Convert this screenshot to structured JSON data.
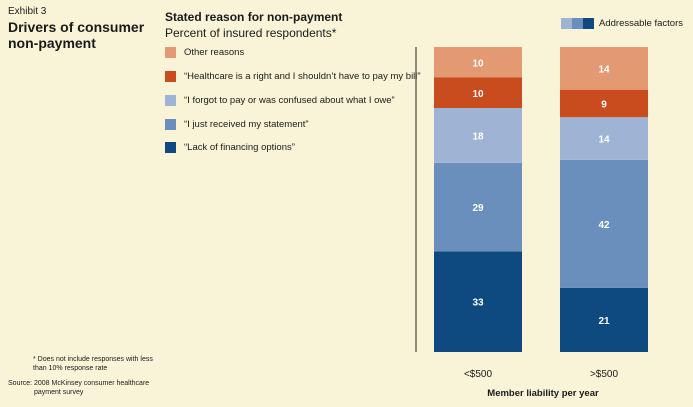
{
  "exhibit": {
    "label": "Exhibit 3",
    "title": "Drivers of consumer non-payment"
  },
  "footnote": "* Does not include responses with less than 10% response rate",
  "source": {
    "label": "Source:",
    "text": "2008 McKinsey consumer healthcare payment survey"
  },
  "addressable_label": "Addressable factors",
  "colors": {
    "other": "#e39a72",
    "right": "#c94c1e",
    "forgot": "#9fb3d4",
    "statement": "#6a8fbc",
    "financing": "#0e4a80",
    "background": "#f9f4d8"
  },
  "chart_data": {
    "type": "bar",
    "stacked": true,
    "title": "Stated reason for non-payment",
    "subtitle": "Percent of insured respondents*",
    "xlabel": "Member liability per year",
    "ylabel": "",
    "categories": [
      "<$500",
      ">$500"
    ],
    "series": [
      {
        "name": "“Lack of financing options”",
        "key": "financing",
        "values": [
          33,
          21
        ]
      },
      {
        "name": "“I just received my statement”",
        "key": "statement",
        "values": [
          29,
          42
        ]
      },
      {
        "name": "“I forgot to pay or was confused about what I owe”",
        "key": "forgot",
        "values": [
          18,
          14
        ]
      },
      {
        "name": "“Healthcare is a right and I shouldn’t have to pay my bill”",
        "key": "right",
        "values": [
          10,
          9
        ]
      },
      {
        "name": "Other reasons",
        "key": "other",
        "values": [
          10,
          14
        ]
      }
    ],
    "ylim": [
      0,
      100
    ],
    "grid": false,
    "legend": "left"
  }
}
